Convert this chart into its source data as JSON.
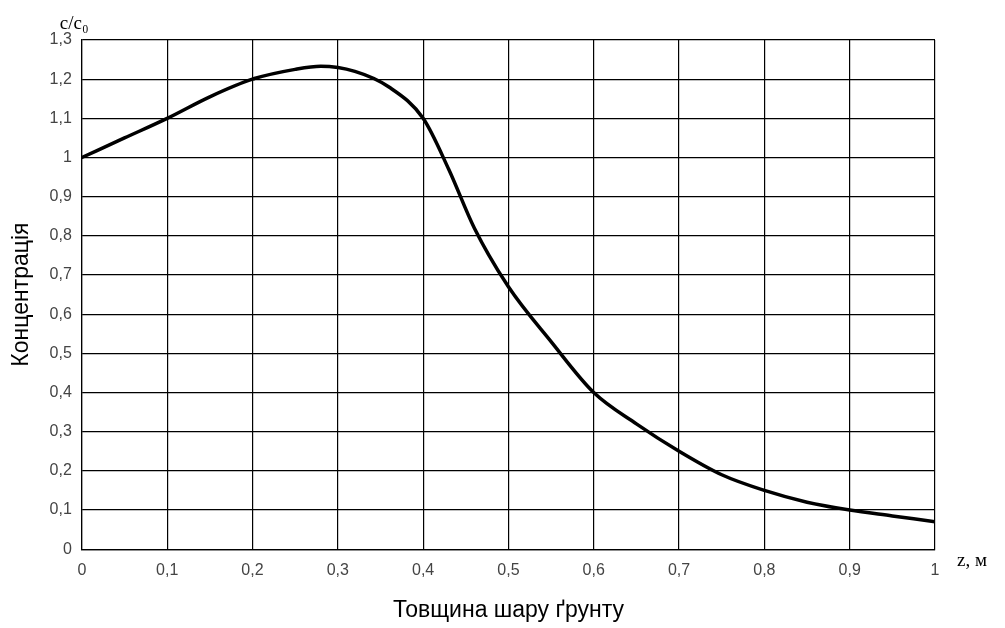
{
  "chart_data": {
    "type": "line",
    "xlabel": "Товщина шару ґрунту",
    "ylabel": "Концентрація",
    "annotations": [
      "c/c₀",
      "z, м"
    ],
    "x": [
      0,
      0.05,
      0.1,
      0.15,
      0.2,
      0.25,
      0.28,
      0.32,
      0.36,
      0.4,
      0.43,
      0.46,
      0.5,
      0.55,
      0.6,
      0.65,
      0.7,
      0.75,
      0.8,
      0.85,
      0.9,
      0.95,
      1
    ],
    "series": [
      {
        "color": "#000000",
        "values": [
          1.0,
          1.05,
          1.1,
          1.155,
          1.2,
          1.225,
          1.233,
          1.22,
          1.18,
          1.1,
          0.97,
          0.82,
          0.67,
          0.53,
          0.4,
          0.32,
          0.25,
          0.19,
          0.15,
          0.12,
          0.1,
          0.085,
          0.07
        ]
      }
    ],
    "xlim": [
      0,
      1
    ],
    "xticks": [
      0,
      {
        "value": 0.1,
        "label": "0,1"
      },
      {
        "value": 0.2,
        "label": "0,2"
      },
      {
        "value": 0.3,
        "label": "0,3"
      },
      {
        "value": 0.4,
        "label": "0,4"
      },
      {
        "value": 0.5,
        "label": "0,5"
      },
      {
        "value": 0.6,
        "label": "0,6"
      },
      {
        "value": 0.7,
        "label": "0,7"
      },
      {
        "value": 0.8,
        "label": "0,8"
      },
      {
        "value": 0.9,
        "label": "0,9"
      },
      1
    ],
    "ylim": [
      0,
      1.3
    ],
    "yticks": [
      0,
      {
        "value": 0.1,
        "label": "0,1"
      },
      {
        "value": 0.2,
        "label": "0,2"
      },
      {
        "value": 0.3,
        "label": "0,3"
      },
      {
        "value": 0.4,
        "label": "0,4"
      },
      {
        "value": 0.5,
        "label": "0,5"
      },
      {
        "value": 0.6,
        "label": "0,6"
      },
      {
        "value": 0.7,
        "label": "0,7"
      },
      {
        "value": 0.8,
        "label": "0,8"
      },
      {
        "value": 0.9,
        "label": "0,9"
      },
      1,
      {
        "value": 1.1,
        "label": "1,1"
      },
      {
        "value": 1.2,
        "label": "1,2"
      },
      {
        "value": 1.3,
        "label": "1,3"
      }
    ],
    "grid": true,
    "legend": false,
    "marker": "none",
    "line_style": "solid"
  }
}
